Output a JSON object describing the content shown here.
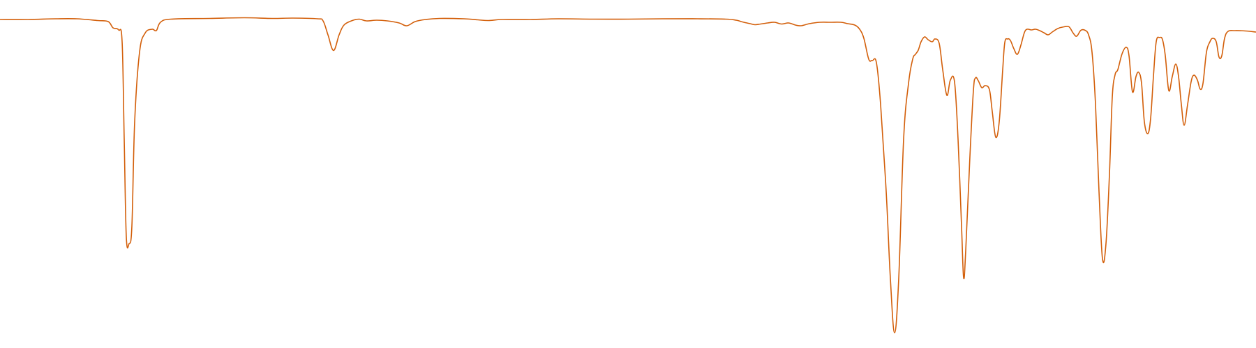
{
  "chart_data": {
    "type": "line",
    "title": "",
    "xlabel": "",
    "ylabel": "",
    "grid": false,
    "legend": "none",
    "xlim": [
      0,
      1800
    ],
    "ylim": [
      0,
      100
    ],
    "series": [
      {
        "color": "#d35f0a",
        "points": [
          [
            0,
            94.4
          ],
          [
            40,
            94.4
          ],
          [
            80,
            94.6
          ],
          [
            110,
            94.6
          ],
          [
            140,
            94.1
          ],
          [
            155,
            93.8
          ],
          [
            162,
            92.0
          ],
          [
            170,
            91.4
          ],
          [
            175,
            88.0
          ],
          [
            178,
            60.0
          ],
          [
            181,
            32.0
          ],
          [
            185,
            30.0
          ],
          [
            189,
            35.0
          ],
          [
            193,
            65.0
          ],
          [
            200,
            85.0
          ],
          [
            208,
            90.5
          ],
          [
            218,
            91.6
          ],
          [
            224,
            91.2
          ],
          [
            230,
            93.6
          ],
          [
            245,
            94.5
          ],
          [
            300,
            94.7
          ],
          [
            350,
            94.9
          ],
          [
            390,
            94.7
          ],
          [
            420,
            94.8
          ],
          [
            455,
            94.6
          ],
          [
            463,
            94.0
          ],
          [
            470,
            90.0
          ],
          [
            478,
            85.5
          ],
          [
            486,
            90.0
          ],
          [
            493,
            92.8
          ],
          [
            505,
            94.1
          ],
          [
            515,
            94.5
          ],
          [
            525,
            94.0
          ],
          [
            540,
            94.2
          ],
          [
            555,
            94.0
          ],
          [
            572,
            93.4
          ],
          [
            583,
            92.6
          ],
          [
            595,
            93.8
          ],
          [
            610,
            94.4
          ],
          [
            630,
            94.7
          ],
          [
            665,
            94.6
          ],
          [
            685,
            94.3
          ],
          [
            700,
            94.1
          ],
          [
            720,
            94.4
          ],
          [
            760,
            94.4
          ],
          [
            800,
            94.6
          ],
          [
            850,
            94.5
          ],
          [
            900,
            94.5
          ],
          [
            950,
            94.6
          ],
          [
            1000,
            94.6
          ],
          [
            1040,
            94.5
          ],
          [
            1055,
            94.2
          ],
          [
            1062,
            93.8
          ],
          [
            1068,
            93.5
          ],
          [
            1075,
            93.2
          ],
          [
            1082,
            92.9
          ],
          [
            1090,
            93.1
          ],
          [
            1100,
            93.4
          ],
          [
            1110,
            93.6
          ],
          [
            1120,
            93.1
          ],
          [
            1130,
            93.4
          ],
          [
            1140,
            92.8
          ],
          [
            1148,
            92.6
          ],
          [
            1160,
            93.2
          ],
          [
            1175,
            93.6
          ],
          [
            1190,
            93.6
          ],
          [
            1205,
            93.6
          ],
          [
            1215,
            93.2
          ],
          [
            1225,
            92.8
          ],
          [
            1232,
            91.6
          ],
          [
            1238,
            89.0
          ],
          [
            1245,
            83.0
          ],
          [
            1250,
            82.6
          ],
          [
            1256,
            82.0
          ],
          [
            1262,
            70.0
          ],
          [
            1270,
            45.0
          ],
          [
            1276,
            20.0
          ],
          [
            1282,
            4.4
          ],
          [
            1288,
            20.0
          ],
          [
            1295,
            60.0
          ],
          [
            1302,
            76.0
          ],
          [
            1308,
            83.0
          ],
          [
            1312,
            84.4
          ],
          [
            1316,
            85.6
          ],
          [
            1320,
            88.0
          ],
          [
            1325,
            89.4
          ],
          [
            1330,
            88.6
          ],
          [
            1336,
            88.0
          ],
          [
            1340,
            88.8
          ],
          [
            1346,
            87.5
          ],
          [
            1351,
            80.0
          ],
          [
            1357,
            72.6
          ],
          [
            1362,
            77.0
          ],
          [
            1368,
            76.4
          ],
          [
            1373,
            60.0
          ],
          [
            1378,
            35.0
          ],
          [
            1381,
            20.2
          ],
          [
            1384,
            28.0
          ],
          [
            1390,
            55.0
          ],
          [
            1395,
            74.0
          ],
          [
            1398,
            77.6
          ],
          [
            1402,
            76.8
          ],
          [
            1407,
            74.8
          ],
          [
            1412,
            75.4
          ],
          [
            1418,
            74.2
          ],
          [
            1422,
            68.0
          ],
          [
            1427,
            60.6
          ],
          [
            1432,
            65.0
          ],
          [
            1437,
            80.0
          ],
          [
            1440,
            87.8
          ],
          [
            1444,
            88.8
          ],
          [
            1448,
            88.4
          ],
          [
            1453,
            86.0
          ],
          [
            1458,
            84.4
          ],
          [
            1463,
            87.0
          ],
          [
            1468,
            90.6
          ],
          [
            1472,
            91.6
          ],
          [
            1478,
            91.4
          ],
          [
            1484,
            91.6
          ],
          [
            1490,
            91.2
          ],
          [
            1496,
            90.6
          ],
          [
            1502,
            90.0
          ],
          [
            1508,
            90.8
          ],
          [
            1516,
            91.8
          ],
          [
            1525,
            92.3
          ],
          [
            1532,
            92.3
          ],
          [
            1538,
            90.5
          ],
          [
            1543,
            89.6
          ],
          [
            1549,
            91.3
          ],
          [
            1555,
            91.3
          ],
          [
            1560,
            90.0
          ],
          [
            1565,
            85.0
          ],
          [
            1570,
            70.0
          ],
          [
            1575,
            45.0
          ],
          [
            1580,
            25.6
          ],
          [
            1585,
            30.0
          ],
          [
            1590,
            50.0
          ],
          [
            1594,
            72.0
          ],
          [
            1598,
            78.5
          ],
          [
            1602,
            80.0
          ],
          [
            1608,
            84.5
          ],
          [
            1614,
            86.4
          ],
          [
            1618,
            84.0
          ],
          [
            1623,
            73.6
          ],
          [
            1628,
            78.0
          ],
          [
            1632,
            79.2
          ],
          [
            1636,
            76.0
          ],
          [
            1640,
            65.0
          ],
          [
            1645,
            61.6
          ],
          [
            1649,
            66.0
          ],
          [
            1653,
            78.0
          ],
          [
            1657,
            88.0
          ],
          [
            1662,
            89.2
          ],
          [
            1666,
            88.6
          ],
          [
            1670,
            84.0
          ],
          [
            1675,
            74.0
          ],
          [
            1680,
            78.0
          ],
          [
            1685,
            81.6
          ],
          [
            1689,
            78.0
          ],
          [
            1693,
            70.0
          ],
          [
            1697,
            64.0
          ],
          [
            1702,
            70.0
          ],
          [
            1707,
            76.5
          ],
          [
            1711,
            78.4
          ],
          [
            1716,
            77.0
          ],
          [
            1720,
            74.4
          ],
          [
            1724,
            76.0
          ],
          [
            1729,
            85.0
          ],
          [
            1734,
            88.0
          ],
          [
            1738,
            89.0
          ],
          [
            1743,
            88.0
          ],
          [
            1747,
            83.6
          ],
          [
            1751,
            84.0
          ],
          [
            1755,
            89.0
          ],
          [
            1760,
            91.0
          ],
          [
            1770,
            91.2
          ],
          [
            1785,
            91.1
          ],
          [
            1800,
            90.8
          ]
        ]
      }
    ]
  }
}
